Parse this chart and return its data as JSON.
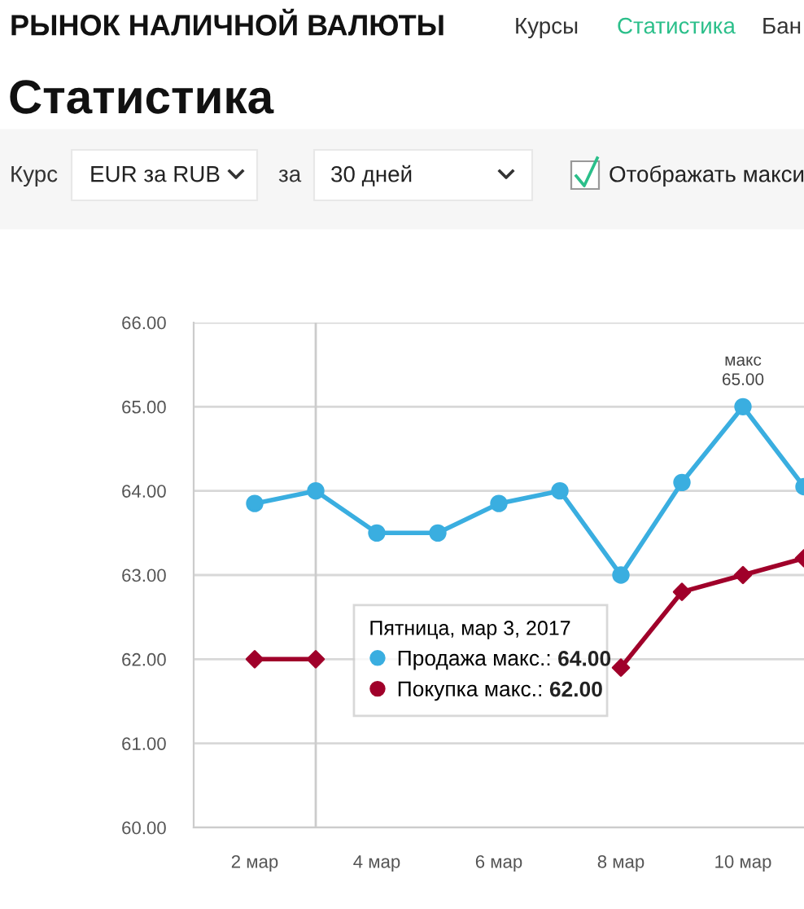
{
  "chart_data": {
    "type": "line",
    "title": "Статистика",
    "annotations": [
      "РЫНОК НАЛИЧНОЙ ВАЛЮТЫ",
      "Курсы",
      "Статистика",
      "Бан",
      "Курс",
      "EUR за RUB",
      "за",
      "30 дней",
      "Отображать макси",
      "64.00",
      "62.00",
      {
        "text": "макс\n65.00",
        "x": 10,
        "y": 65.0
      }
    ],
    "legend_title": "Пятница, мар 3, 2017",
    "x": [
      2,
      3,
      4,
      5,
      6,
      7,
      8,
      9,
      10,
      11
    ],
    "series": [
      {
        "name": "Продажа макс.:",
        "color": "#3aaee0",
        "marker": "circle",
        "values": [
          63.85,
          64.0,
          63.5,
          63.5,
          63.85,
          64.0,
          63.0,
          64.1,
          65.0,
          64.05
        ]
      },
      {
        "name": "Покупка макс.:",
        "color": "#a0002a",
        "marker": "diamond",
        "values": [
          62.0,
          62.0,
          null,
          null,
          null,
          null,
          61.9,
          62.8,
          63.0,
          63.2
        ]
      }
    ],
    "xlim": [
      1,
      11
    ],
    "xticks": [
      {
        "value": 2,
        "label": "2 мар"
      },
      {
        "value": 4,
        "label": "4 мар"
      },
      {
        "value": 6,
        "label": "6 мар"
      },
      {
        "value": 8,
        "label": "8 мар"
      },
      {
        "value": 10,
        "label": "10 мар"
      }
    ],
    "ylim": [
      60,
      66
    ],
    "yticks": [
      {
        "value": 60,
        "label": "60.00"
      },
      {
        "value": 61,
        "label": "61.00"
      },
      {
        "value": 62,
        "label": "62.00"
      },
      {
        "value": 63,
        "label": "63.00"
      },
      {
        "value": 64,
        "label": "64.00"
      },
      {
        "value": 65,
        "label": "65.00"
      },
      {
        "value": 66,
        "label": "66.00"
      }
    ],
    "grid": "y",
    "ref_lines": [
      {
        "axis": "x",
        "value": 3,
        "label": null,
        "color": "#cccccc"
      }
    ],
    "legend": "bottom"
  }
}
